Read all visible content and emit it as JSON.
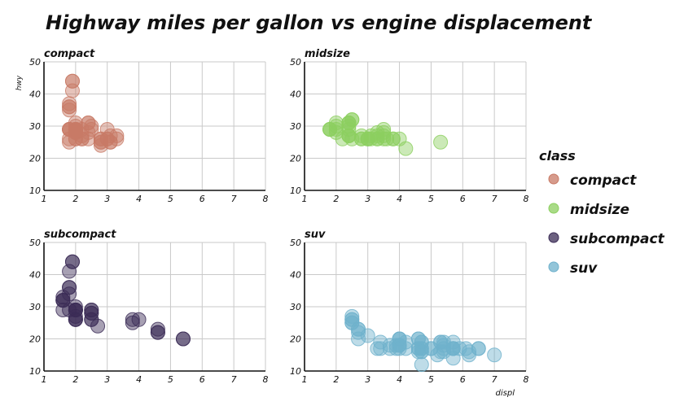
{
  "chart_data": {
    "type": "scatter",
    "title": "Highway miles per gallon vs engine displacement",
    "xlabel": "displ",
    "ylabel": "hwy",
    "xlim": [
      1,
      8
    ],
    "ylim": [
      10,
      50
    ],
    "x_ticks": [
      "1",
      "2",
      "3",
      "4",
      "5",
      "6",
      "7",
      "8"
    ],
    "y_ticks": [
      "10",
      "20",
      "30",
      "40",
      "50"
    ],
    "grid": true,
    "legend": {
      "title": "class",
      "position": "right"
    },
    "series": [
      {
        "name": "compact",
        "color": "#c87a66",
        "points": [
          [
            1.8,
            29
          ],
          [
            1.8,
            29
          ],
          [
            2.0,
            31
          ],
          [
            2.0,
            30
          ],
          [
            2.8,
            26
          ],
          [
            2.8,
            26
          ],
          [
            3.1,
            27
          ],
          [
            1.8,
            26
          ],
          [
            1.8,
            25
          ],
          [
            2.0,
            28
          ],
          [
            2.0,
            29
          ],
          [
            2.8,
            25
          ],
          [
            2.8,
            25
          ],
          [
            3.1,
            25
          ],
          [
            3.1,
            25
          ],
          [
            2.2,
            27
          ],
          [
            2.2,
            29
          ],
          [
            2.4,
            31
          ],
          [
            2.4,
            31
          ],
          [
            3.0,
            26
          ],
          [
            3.0,
            26
          ],
          [
            3.3,
            27
          ],
          [
            3.3,
            26
          ],
          [
            2.0,
            29
          ],
          [
            2.0,
            29
          ],
          [
            2.0,
            28
          ],
          [
            2.0,
            29
          ],
          [
            2.0,
            26
          ],
          [
            2.0,
            26
          ],
          [
            1.9,
            44
          ],
          [
            1.9,
            44
          ],
          [
            1.9,
            41
          ],
          [
            1.8,
            29
          ],
          [
            1.8,
            29
          ],
          [
            1.8,
            35
          ],
          [
            1.8,
            37
          ],
          [
            2.5,
            29
          ],
          [
            2.5,
            30
          ],
          [
            2.2,
            26
          ],
          [
            2.2,
            26
          ],
          [
            2.4,
            28
          ],
          [
            2.4,
            26
          ],
          [
            3.0,
            29
          ],
          [
            1.8,
            36
          ],
          [
            1.8,
            36
          ],
          [
            2.0,
            28
          ],
          [
            2.0,
            29
          ],
          [
            2.8,
            24
          ],
          [
            2.0,
            28
          ]
        ]
      },
      {
        "name": "midsize",
        "color": "#8ccf5f",
        "points": [
          [
            2.4,
            27
          ],
          [
            2.4,
            30
          ],
          [
            3.1,
            26
          ],
          [
            3.5,
            29
          ],
          [
            3.6,
            26
          ],
          [
            2.4,
            27
          ],
          [
            3.0,
            26
          ],
          [
            3.3,
            26
          ],
          [
            3.3,
            26
          ],
          [
            3.3,
            28
          ],
          [
            3.3,
            27
          ],
          [
            3.8,
            26
          ],
          [
            3.8,
            26
          ],
          [
            4.0,
            26
          ],
          [
            1.8,
            29
          ],
          [
            1.8,
            29
          ],
          [
            2.0,
            31
          ],
          [
            2.0,
            30
          ],
          [
            2.8,
            26
          ],
          [
            2.8,
            26
          ],
          [
            3.1,
            27
          ],
          [
            4.2,
            23
          ],
          [
            5.3,
            25
          ],
          [
            2.4,
            31
          ],
          [
            2.4,
            31
          ],
          [
            2.5,
            32
          ],
          [
            2.5,
            32
          ],
          [
            3.5,
            27
          ],
          [
            3.5,
            26
          ],
          [
            3.0,
            26
          ],
          [
            1.8,
            29
          ],
          [
            2.0,
            28
          ],
          [
            2.0,
            29
          ],
          [
            2.4,
            29
          ],
          [
            2.4,
            31
          ],
          [
            2.8,
            27
          ],
          [
            3.5,
            28
          ],
          [
            2.2,
            26
          ],
          [
            2.4,
            27
          ],
          [
            3.0,
            26
          ],
          [
            2.5,
            26
          ]
        ]
      },
      {
        "name": "subcompact",
        "color": "#3b2c56",
        "points": [
          [
            3.8,
            26
          ],
          [
            3.8,
            25
          ],
          [
            4.0,
            26
          ],
          [
            4.6,
            23
          ],
          [
            4.6,
            22
          ],
          [
            4.6,
            22
          ],
          [
            5.4,
            20
          ],
          [
            5.4,
            20
          ],
          [
            1.6,
            33
          ],
          [
            1.6,
            32
          ],
          [
            1.6,
            32
          ],
          [
            1.6,
            29
          ],
          [
            1.6,
            32
          ],
          [
            1.8,
            34
          ],
          [
            1.8,
            36
          ],
          [
            1.8,
            36
          ],
          [
            2.0,
            29
          ],
          [
            2.0,
            26
          ],
          [
            2.0,
            27
          ],
          [
            2.0,
            30
          ],
          [
            2.0,
            29
          ],
          [
            2.0,
            26
          ],
          [
            2.0,
            26
          ],
          [
            2.5,
            26
          ],
          [
            2.5,
            26
          ],
          [
            2.5,
            28
          ],
          [
            2.5,
            28
          ],
          [
            2.7,
            24
          ],
          [
            1.9,
            44
          ],
          [
            1.9,
            44
          ],
          [
            2.0,
            29
          ],
          [
            2.0,
            29
          ],
          [
            2.5,
            29
          ],
          [
            2.5,
            29
          ],
          [
            1.8,
            29
          ],
          [
            1.8,
            41
          ]
        ]
      },
      {
        "name": "suv",
        "color": "#6fb1cc",
        "points": [
          [
            5.7,
            17
          ],
          [
            5.7,
            17
          ],
          [
            6.2,
            15
          ],
          [
            6.2,
            16
          ],
          [
            7.0,
            15
          ],
          [
            5.3,
            19
          ],
          [
            5.3,
            16
          ],
          [
            5.7,
            17
          ],
          [
            6.5,
            17
          ],
          [
            3.7,
            17
          ],
          [
            3.7,
            18
          ],
          [
            3.9,
            17
          ],
          [
            3.9,
            18
          ],
          [
            4.7,
            19
          ],
          [
            4.7,
            16
          ],
          [
            4.7,
            17
          ],
          [
            5.2,
            15
          ],
          [
            5.7,
            19
          ],
          [
            5.9,
            17
          ],
          [
            4.7,
            17
          ],
          [
            4.7,
            16
          ],
          [
            4.7,
            12
          ],
          [
            5.7,
            17
          ],
          [
            6.1,
            17
          ],
          [
            4.0,
            20
          ],
          [
            4.0,
            18
          ],
          [
            4.6,
            20
          ],
          [
            5.0,
            17
          ],
          [
            4.2,
            19
          ],
          [
            4.2,
            17
          ],
          [
            4.6,
            16
          ],
          [
            4.6,
            17
          ],
          [
            4.6,
            17
          ],
          [
            5.4,
            18
          ],
          [
            5.4,
            16
          ],
          [
            4.0,
            20
          ],
          [
            4.0,
            20
          ],
          [
            4.6,
            20
          ],
          [
            5.0,
            17
          ],
          [
            5.4,
            17
          ],
          [
            2.5,
            26
          ],
          [
            2.5,
            26
          ],
          [
            2.5,
            27
          ],
          [
            2.5,
            25
          ],
          [
            2.7,
            23
          ],
          [
            2.7,
            23
          ],
          [
            3.4,
            19
          ],
          [
            3.4,
            17
          ],
          [
            4.0,
            18
          ],
          [
            4.7,
            19
          ],
          [
            2.7,
            20
          ],
          [
            2.7,
            22
          ],
          [
            3.0,
            21
          ],
          [
            3.3,
            17
          ],
          [
            4.0,
            17
          ],
          [
            4.0,
            18
          ],
          [
            5.3,
            19
          ],
          [
            6.5,
            17
          ],
          [
            2.5,
            25
          ],
          [
            5.4,
            19
          ],
          [
            5.7,
            14
          ]
        ]
      }
    ]
  },
  "facets": [
    {
      "label": "compact",
      "series": 0,
      "show_ylabel": true,
      "show_xlabel": false
    },
    {
      "label": "midsize",
      "series": 1,
      "show_ylabel": false,
      "show_xlabel": false
    },
    {
      "label": "subcompact",
      "series": 2,
      "show_ylabel": false,
      "show_xlabel": false
    },
    {
      "label": "suv",
      "series": 3,
      "show_ylabel": false,
      "show_xlabel": true
    }
  ]
}
